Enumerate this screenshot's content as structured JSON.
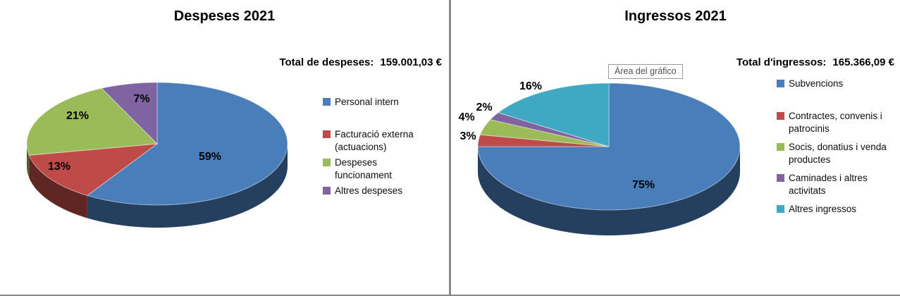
{
  "chart_data": [
    {
      "type": "pie",
      "title": "Despeses 2021",
      "total_label": "Total de despeses:",
      "total_value": "159.001,03 €",
      "labels": [
        "Personal intern",
        "Facturació externa (actuacions)",
        "Despeses funcionament",
        "Altres despeses"
      ],
      "values": [
        59,
        13,
        21,
        7
      ],
      "unit": "%",
      "colors": [
        "#4A7EBB",
        "#BE4B48",
        "#9BBB59",
        "#8064A2"
      ],
      "legend_position": "right",
      "effect_3d": true,
      "start_angle": 0,
      "direction": "clockwise"
    },
    {
      "type": "pie",
      "title": "Ingressos 2021",
      "total_label": "Total d'ingressos:",
      "total_value": "165.366,09 €",
      "labels": [
        "Subvencions",
        "Contractes, convenis i patrocinis",
        "Socis, donatius i venda productes",
        "Caminades i altres activitats",
        "Altres ingressos"
      ],
      "values": [
        75,
        3,
        4,
        2,
        16
      ],
      "unit": "%",
      "colors": [
        "#4A7EBB",
        "#BE4B48",
        "#9BBB59",
        "#8064A2",
        "#3FA9C4"
      ],
      "legend_position": "right",
      "effect_3d": true,
      "start_angle": 0,
      "direction": "clockwise",
      "tooltip": "Área del gráfico"
    }
  ]
}
